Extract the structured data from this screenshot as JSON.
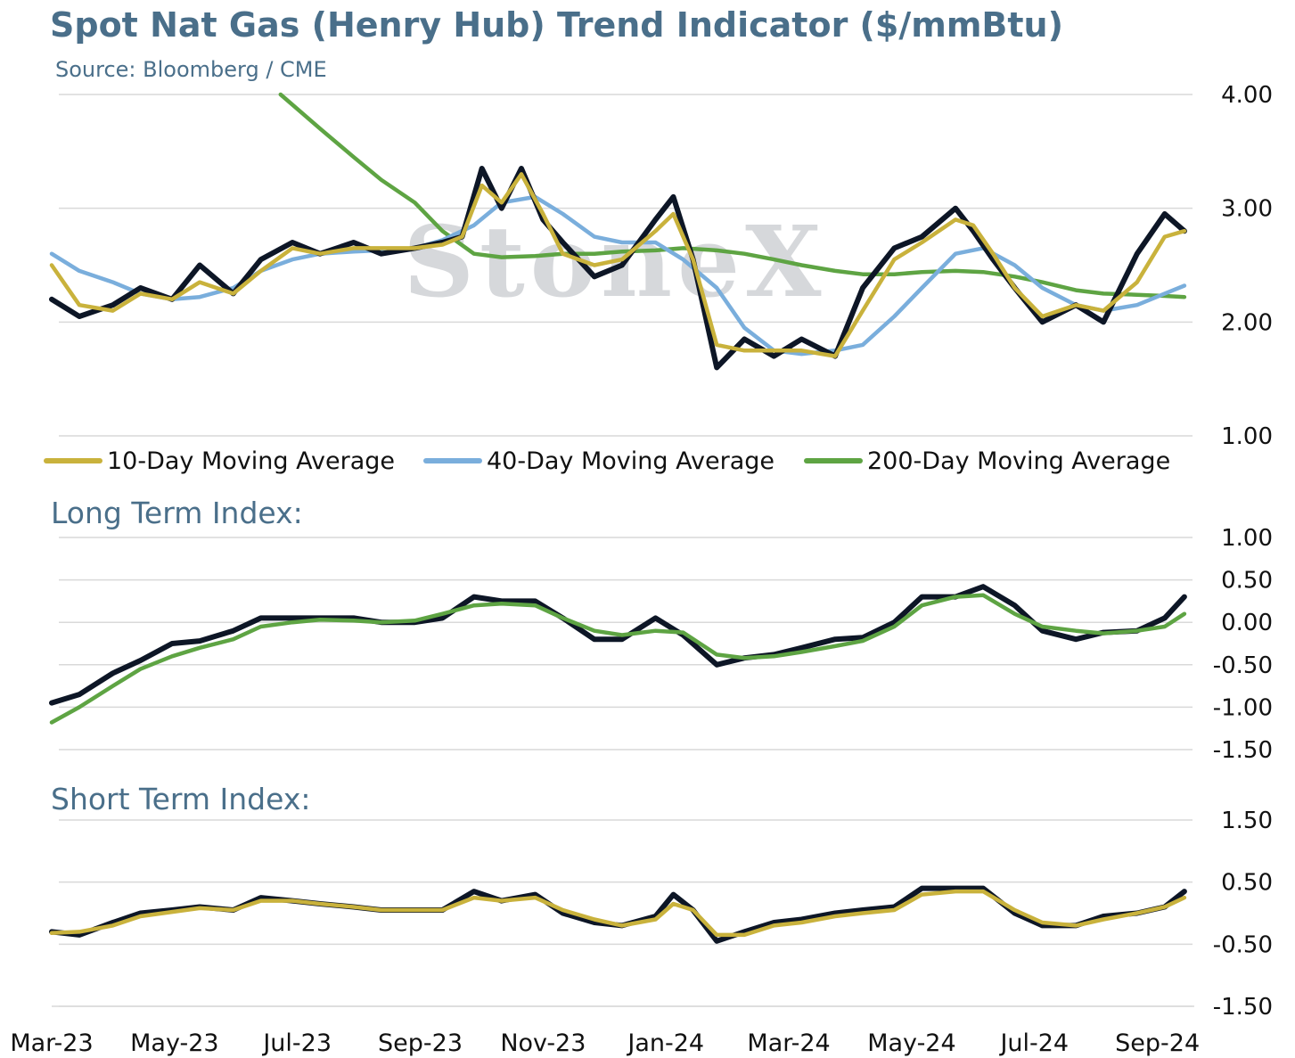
{
  "header": {
    "title": "Spot Nat Gas (Henry Hub) Trend Indicator ($/mmBtu)",
    "source": "Source: Bloomberg / CME"
  },
  "watermark": "StoneX",
  "colors": {
    "spot": "#0d1626",
    "ma10": "#c9b23c",
    "ma40": "#7aaedc",
    "ma200": "#5ea443",
    "grid": "#d9d9d9",
    "label": "#4a6f8a"
  },
  "chart_data": [
    {
      "id": "price",
      "type": "line",
      "title": "Spot Nat Gas (Henry Hub) Trend Indicator ($/mmBtu)",
      "ylim": [
        1.0,
        4.0
      ],
      "yticks": [
        "4.00",
        "3.00",
        "2.00",
        "1.00"
      ],
      "x_labels": [
        "Mar-23",
        "May-23",
        "Jul-23",
        "Sep-23",
        "Nov-23",
        "Jan-24",
        "Mar-24",
        "May-24",
        "Jul-24",
        "Sep-24"
      ],
      "x_range": [
        "2023-03-01",
        "2024-09-30"
      ],
      "legend": [
        "10-Day Moving Average",
        "40-Day Moving Average",
        "200-Day Moving Average"
      ],
      "legend_position": "bottom",
      "series": [
        {
          "key": "spot",
          "x": [
            "2023-03-01",
            "2023-03-15",
            "2023-04-01",
            "2023-04-15",
            "2023-05-01",
            "2023-05-15",
            "2023-06-01",
            "2023-06-15",
            "2023-07-01",
            "2023-07-15",
            "2023-08-01",
            "2023-08-15",
            "2023-09-01",
            "2023-09-15",
            "2023-09-25",
            "2023-10-05",
            "2023-10-15",
            "2023-10-25",
            "2023-11-05",
            "2023-11-15",
            "2023-12-01",
            "2023-12-15",
            "2024-01-01",
            "2024-01-10",
            "2024-01-20",
            "2024-02-01",
            "2024-02-15",
            "2024-03-01",
            "2024-03-15",
            "2024-04-01",
            "2024-04-15",
            "2024-05-01",
            "2024-05-15",
            "2024-06-01",
            "2024-06-10",
            "2024-06-20",
            "2024-07-01",
            "2024-07-15",
            "2024-08-01",
            "2024-08-15",
            "2024-09-01",
            "2024-09-15",
            "2024-09-25"
          ],
          "values": [
            2.2,
            2.05,
            2.15,
            2.3,
            2.2,
            2.5,
            2.25,
            2.55,
            2.7,
            2.6,
            2.7,
            2.6,
            2.65,
            2.7,
            2.75,
            3.35,
            3.0,
            3.35,
            2.9,
            2.7,
            2.4,
            2.5,
            2.9,
            3.1,
            2.55,
            1.6,
            1.85,
            1.7,
            1.85,
            1.7,
            2.3,
            2.65,
            2.75,
            3.0,
            2.8,
            2.55,
            2.3,
            2.0,
            2.15,
            2.0,
            2.6,
            2.95,
            2.8
          ]
        },
        {
          "key": "ma10",
          "x": [
            "2023-03-01",
            "2023-03-15",
            "2023-04-01",
            "2023-04-15",
            "2023-05-01",
            "2023-05-15",
            "2023-06-01",
            "2023-06-15",
            "2023-07-01",
            "2023-07-15",
            "2023-08-01",
            "2023-08-15",
            "2023-09-01",
            "2023-09-15",
            "2023-09-25",
            "2023-10-05",
            "2023-10-15",
            "2023-10-25",
            "2023-11-05",
            "2023-11-15",
            "2023-12-01",
            "2023-12-15",
            "2024-01-01",
            "2024-01-10",
            "2024-01-20",
            "2024-02-01",
            "2024-02-15",
            "2024-03-01",
            "2024-03-15",
            "2024-04-01",
            "2024-04-15",
            "2024-05-01",
            "2024-05-15",
            "2024-06-01",
            "2024-06-10",
            "2024-06-20",
            "2024-07-01",
            "2024-07-15",
            "2024-08-01",
            "2024-08-15",
            "2024-09-01",
            "2024-09-15",
            "2024-09-25"
          ],
          "values": [
            2.5,
            2.15,
            2.1,
            2.25,
            2.2,
            2.35,
            2.25,
            2.45,
            2.65,
            2.6,
            2.65,
            2.65,
            2.65,
            2.68,
            2.75,
            3.2,
            3.05,
            3.3,
            2.95,
            2.6,
            2.5,
            2.55,
            2.8,
            2.95,
            2.55,
            1.8,
            1.75,
            1.75,
            1.75,
            1.7,
            2.1,
            2.55,
            2.7,
            2.9,
            2.85,
            2.6,
            2.3,
            2.05,
            2.15,
            2.1,
            2.35,
            2.75,
            2.8
          ]
        },
        {
          "key": "ma40",
          "x": [
            "2023-03-01",
            "2023-03-15",
            "2023-04-01",
            "2023-04-15",
            "2023-05-01",
            "2023-05-15",
            "2023-06-01",
            "2023-06-15",
            "2023-07-01",
            "2023-07-15",
            "2023-08-01",
            "2023-08-15",
            "2023-09-01",
            "2023-09-15",
            "2023-10-01",
            "2023-10-15",
            "2023-11-01",
            "2023-11-15",
            "2023-12-01",
            "2023-12-15",
            "2024-01-01",
            "2024-01-15",
            "2024-02-01",
            "2024-02-15",
            "2024-03-01",
            "2024-03-15",
            "2024-04-01",
            "2024-04-15",
            "2024-05-01",
            "2024-05-15",
            "2024-06-01",
            "2024-06-15",
            "2024-07-01",
            "2024-07-15",
            "2024-08-01",
            "2024-08-15",
            "2024-09-01",
            "2024-09-15",
            "2024-09-25"
          ],
          "values": [
            2.6,
            2.45,
            2.35,
            2.25,
            2.2,
            2.22,
            2.3,
            2.45,
            2.55,
            2.6,
            2.62,
            2.63,
            2.65,
            2.72,
            2.85,
            3.05,
            3.1,
            2.95,
            2.75,
            2.7,
            2.7,
            2.55,
            2.3,
            1.95,
            1.75,
            1.72,
            1.75,
            1.8,
            2.05,
            2.3,
            2.6,
            2.65,
            2.5,
            2.3,
            2.15,
            2.1,
            2.15,
            2.25,
            2.32
          ]
        },
        {
          "key": "ma200",
          "x": [
            "2023-06-25",
            "2023-07-15",
            "2023-08-01",
            "2023-08-15",
            "2023-09-01",
            "2023-09-15",
            "2023-10-01",
            "2023-10-15",
            "2023-11-01",
            "2023-11-15",
            "2023-12-01",
            "2023-12-15",
            "2024-01-01",
            "2024-01-15",
            "2024-02-01",
            "2024-02-15",
            "2024-03-01",
            "2024-03-15",
            "2024-04-01",
            "2024-04-15",
            "2024-05-01",
            "2024-05-15",
            "2024-06-01",
            "2024-06-15",
            "2024-07-01",
            "2024-07-15",
            "2024-08-01",
            "2024-08-15",
            "2024-09-01",
            "2024-09-15",
            "2024-09-25"
          ],
          "values": [
            4.0,
            3.7,
            3.45,
            3.25,
            3.05,
            2.8,
            2.6,
            2.57,
            2.58,
            2.6,
            2.6,
            2.62,
            2.63,
            2.65,
            2.63,
            2.6,
            2.55,
            2.5,
            2.45,
            2.42,
            2.42,
            2.44,
            2.45,
            2.44,
            2.4,
            2.35,
            2.28,
            2.25,
            2.24,
            2.23,
            2.22
          ]
        }
      ]
    },
    {
      "id": "long",
      "type": "line",
      "title": "Long Term Index:",
      "ylim": [
        -1.5,
        1.0
      ],
      "yticks": [
        "1.00",
        "0.50",
        "0.00",
        "-0.50",
        "-1.00",
        "-1.50"
      ],
      "series": [
        {
          "key": "spot",
          "x": [
            "2023-03-01",
            "2023-03-15",
            "2023-04-01",
            "2023-04-15",
            "2023-05-01",
            "2023-05-15",
            "2023-06-01",
            "2023-06-15",
            "2023-07-01",
            "2023-07-15",
            "2023-08-01",
            "2023-08-15",
            "2023-09-01",
            "2023-09-15",
            "2023-10-01",
            "2023-10-15",
            "2023-11-01",
            "2023-11-15",
            "2023-12-01",
            "2023-12-15",
            "2024-01-01",
            "2024-01-15",
            "2024-02-01",
            "2024-02-15",
            "2024-03-01",
            "2024-03-15",
            "2024-04-01",
            "2024-04-15",
            "2024-05-01",
            "2024-05-15",
            "2024-06-01",
            "2024-06-15",
            "2024-07-01",
            "2024-07-15",
            "2024-08-01",
            "2024-08-15",
            "2024-09-01",
            "2024-09-15",
            "2024-09-25"
          ],
          "values": [
            -0.95,
            -0.85,
            -0.6,
            -0.45,
            -0.25,
            -0.22,
            -0.1,
            0.05,
            0.05,
            0.05,
            0.05,
            0.0,
            0.0,
            0.05,
            0.3,
            0.25,
            0.25,
            0.05,
            -0.2,
            -0.2,
            0.05,
            -0.15,
            -0.5,
            -0.42,
            -0.38,
            -0.3,
            -0.2,
            -0.18,
            0.0,
            0.3,
            0.3,
            0.42,
            0.2,
            -0.1,
            -0.2,
            -0.12,
            -0.1,
            0.05,
            0.3
          ]
        },
        {
          "key": "ma200",
          "x": [
            "2023-03-01",
            "2023-03-15",
            "2023-04-01",
            "2023-04-15",
            "2023-05-01",
            "2023-05-15",
            "2023-06-01",
            "2023-06-15",
            "2023-07-01",
            "2023-07-15",
            "2023-08-01",
            "2023-08-15",
            "2023-09-01",
            "2023-09-15",
            "2023-10-01",
            "2023-10-15",
            "2023-11-01",
            "2023-11-15",
            "2023-12-01",
            "2023-12-15",
            "2024-01-01",
            "2024-01-15",
            "2024-02-01",
            "2024-02-15",
            "2024-03-01",
            "2024-03-15",
            "2024-04-01",
            "2024-04-15",
            "2024-05-01",
            "2024-05-15",
            "2024-06-01",
            "2024-06-15",
            "2024-07-01",
            "2024-07-15",
            "2024-08-01",
            "2024-08-15",
            "2024-09-01",
            "2024-09-15",
            "2024-09-25"
          ],
          "values": [
            -1.18,
            -1.0,
            -0.75,
            -0.55,
            -0.4,
            -0.3,
            -0.2,
            -0.05,
            0.0,
            0.03,
            0.02,
            0.0,
            0.02,
            0.1,
            0.2,
            0.22,
            0.2,
            0.05,
            -0.1,
            -0.15,
            -0.1,
            -0.12,
            -0.38,
            -0.42,
            -0.4,
            -0.35,
            -0.28,
            -0.22,
            -0.05,
            0.2,
            0.3,
            0.32,
            0.1,
            -0.05,
            -0.1,
            -0.13,
            -0.1,
            -0.05,
            0.1
          ]
        }
      ]
    },
    {
      "id": "short",
      "type": "line",
      "title": "Short Term Index:",
      "ylim": [
        -1.5,
        1.5
      ],
      "yticks": [
        "1.50",
        "0.50",
        "-0.50",
        "-1.50"
      ],
      "x_labels": [
        "Mar-23",
        "May-23",
        "Jul-23",
        "Sep-23",
        "Nov-23",
        "Jan-24",
        "Mar-24",
        "May-24",
        "Jul-24",
        "Sep-24"
      ],
      "series": [
        {
          "key": "spot",
          "x": [
            "2023-03-01",
            "2023-03-15",
            "2023-04-01",
            "2023-04-15",
            "2023-05-01",
            "2023-05-15",
            "2023-06-01",
            "2023-06-15",
            "2023-07-01",
            "2023-07-15",
            "2023-08-01",
            "2023-08-15",
            "2023-09-01",
            "2023-09-15",
            "2023-10-01",
            "2023-10-15",
            "2023-11-01",
            "2023-11-15",
            "2023-12-01",
            "2023-12-15",
            "2024-01-01",
            "2024-01-10",
            "2024-01-20",
            "2024-02-01",
            "2024-02-15",
            "2024-03-01",
            "2024-03-15",
            "2024-04-01",
            "2024-04-15",
            "2024-05-01",
            "2024-05-15",
            "2024-06-01",
            "2024-06-15",
            "2024-07-01",
            "2024-07-15",
            "2024-08-01",
            "2024-08-15",
            "2024-09-01",
            "2024-09-15",
            "2024-09-25"
          ],
          "values": [
            -0.3,
            -0.35,
            -0.15,
            0.0,
            0.05,
            0.1,
            0.05,
            0.25,
            0.2,
            0.15,
            0.1,
            0.05,
            0.05,
            0.05,
            0.35,
            0.2,
            0.3,
            0.0,
            -0.15,
            -0.2,
            -0.05,
            0.3,
            0.05,
            -0.45,
            -0.3,
            -0.15,
            -0.1,
            0.0,
            0.05,
            0.1,
            0.4,
            0.4,
            0.4,
            0.0,
            -0.2,
            -0.2,
            -0.05,
            0.0,
            0.1,
            0.35
          ]
        },
        {
          "key": "ma10",
          "x": [
            "2023-03-01",
            "2023-03-15",
            "2023-04-01",
            "2023-04-15",
            "2023-05-01",
            "2023-05-15",
            "2023-06-01",
            "2023-06-15",
            "2023-07-01",
            "2023-07-15",
            "2023-08-01",
            "2023-08-15",
            "2023-09-01",
            "2023-09-15",
            "2023-10-01",
            "2023-10-15",
            "2023-11-01",
            "2023-11-15",
            "2023-12-01",
            "2023-12-15",
            "2024-01-01",
            "2024-01-10",
            "2024-01-20",
            "2024-02-01",
            "2024-02-15",
            "2024-03-01",
            "2024-03-15",
            "2024-04-01",
            "2024-04-15",
            "2024-05-01",
            "2024-05-15",
            "2024-06-01",
            "2024-06-15",
            "2024-07-01",
            "2024-07-15",
            "2024-08-01",
            "2024-08-15",
            "2024-09-01",
            "2024-09-15",
            "2024-09-25"
          ],
          "values": [
            -0.32,
            -0.3,
            -0.2,
            -0.05,
            0.02,
            0.08,
            0.05,
            0.2,
            0.2,
            0.15,
            0.1,
            0.05,
            0.05,
            0.05,
            0.25,
            0.2,
            0.25,
            0.05,
            -0.1,
            -0.2,
            -0.1,
            0.15,
            0.05,
            -0.35,
            -0.35,
            -0.2,
            -0.15,
            -0.05,
            0.0,
            0.05,
            0.3,
            0.35,
            0.35,
            0.05,
            -0.15,
            -0.2,
            -0.1,
            0.0,
            0.1,
            0.25
          ]
        }
      ]
    }
  ]
}
